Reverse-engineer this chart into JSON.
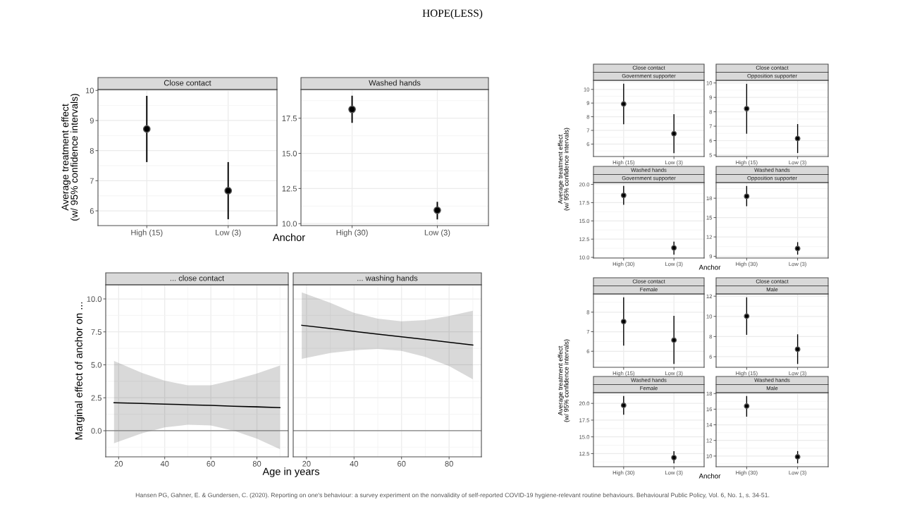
{
  "chart_data": [
    {
      "type": "other",
      "title": "HOPE(LESS)",
      "annotations": [
        "Hansen PG, Gahner, E. & Gundersen, C. (2020). Reporting on one's behaviour: a survey experiment on the nonvalidity of self-reported COVID-19 hygiene-relevant routine behaviours. Behavioural Public Policy, Vol. 6, No. 1, s. 34-51."
      ]
    },
    {
      "type": "scatter",
      "title": "Close contact",
      "xlabel": "Anchor",
      "ylabel": "Average treatment effect\n(w/ 95% confidence intervals)",
      "categories": [
        "High (15)",
        "Low (3)"
      ],
      "values": [
        8.72,
        6.67
      ],
      "errors": [
        [
          7.62,
          9.82
        ],
        [
          5.72,
          7.62
        ]
      ],
      "color": "#000000",
      "marker": "circle",
      "grid": true,
      "ylim": [
        5.51,
        10.03
      ],
      "yticks": [
        6,
        7,
        8,
        9,
        10
      ]
    },
    {
      "type": "scatter",
      "title": "Washed hands",
      "categories": [
        "High (30)",
        "Low (3)"
      ],
      "values": [
        18.13,
        10.95
      ],
      "errors": [
        [
          17.17,
          19.1
        ],
        [
          10.3,
          11.55
        ]
      ],
      "color": "#000000",
      "marker": "circle",
      "grid": true,
      "ylim": [
        9.86,
        19.54
      ],
      "yticks": [
        {
          "value": 10,
          "label": "10.0"
        },
        12.5,
        {
          "value": 15,
          "label": "15.0"
        },
        17.5
      ]
    },
    {
      "type": "line",
      "title": "... close contact",
      "xlabel": "Age in years",
      "ylabel": "Marginal effect of anchor on ...",
      "x": [
        18,
        30,
        40,
        50,
        60,
        70,
        80,
        90
      ],
      "series": [
        {
          "color": "#000000",
          "values": [
            2.12,
            2.07,
            2.02,
            1.97,
            1.92,
            1.86,
            1.81,
            1.75
          ],
          "lower": [
            -0.95,
            -0.2,
            0.25,
            0.45,
            0.4,
            0.0,
            -0.6,
            -1.4
          ],
          "upper": [
            5.3,
            4.4,
            3.8,
            3.45,
            3.45,
            3.85,
            4.35,
            4.95
          ]
        }
      ],
      "ref_lines": [
        {
          "axis": "y",
          "value": 0,
          "color": "#808080"
        }
      ],
      "grid": true,
      "xlim": [
        14.4,
        93.6
      ],
      "xticks": [
        20,
        40,
        60,
        80
      ],
      "ylim": [
        -1.98,
        11.07
      ],
      "yticks": [
        {
          "value": 0,
          "label": "0.0"
        },
        2.5,
        {
          "value": 5,
          "label": "5.0"
        },
        7.5,
        {
          "value": 10,
          "label": "10.0"
        }
      ]
    },
    {
      "type": "line",
      "title": "... washing hands",
      "x": [
        18,
        30,
        40,
        50,
        60,
        70,
        80,
        90
      ],
      "series": [
        {
          "color": "#000000",
          "values": [
            8.0,
            7.75,
            7.54,
            7.33,
            7.13,
            6.92,
            6.71,
            6.5
          ],
          "lower": [
            5.45,
            5.9,
            6.1,
            6.2,
            6.05,
            5.6,
            4.9,
            3.9
          ],
          "upper": [
            10.5,
            9.7,
            8.95,
            8.5,
            8.3,
            8.4,
            8.7,
            9.1
          ]
        }
      ],
      "ref_lines": [
        {
          "axis": "y",
          "value": 0,
          "color": "#808080"
        }
      ],
      "grid": true,
      "xlim": [
        14.4,
        93.6
      ],
      "xticks": [
        20,
        40,
        60,
        80
      ],
      "ylim": [
        -1.98,
        11.07
      ],
      "yticks": [
        {
          "value": 0,
          "label": null
        },
        {
          "value": 2.5,
          "label": null
        },
        {
          "value": 5,
          "label": null
        },
        {
          "value": 7.5,
          "label": null
        },
        {
          "value": 10,
          "label": null
        }
      ],
      "tick_labels": "x"
    },
    {
      "type": "scatter",
      "title": "Close contact",
      "subtitle": "Government supporter",
      "ylabel": "Average treatment effect\n(w/ 95% confidence intervals)",
      "categories": [
        "High (15)",
        "Low (3)"
      ],
      "values": [
        8.93,
        6.76
      ],
      "errors": [
        [
          7.45,
          10.41
        ],
        [
          5.34,
          8.19
        ]
      ],
      "color": "#000000",
      "marker": "circle",
      "grid": true,
      "ylim": [
        5.09,
        10.66
      ],
      "yticks": [
        6,
        7,
        8,
        9,
        10
      ]
    },
    {
      "type": "scatter",
      "title": "Close contact",
      "subtitle": "Opposition supporter",
      "categories": [
        "High (15)",
        "Low (3)"
      ],
      "values": [
        8.22,
        6.15
      ],
      "errors": [
        [
          6.48,
          9.94
        ],
        [
          5.14,
          7.15
        ]
      ],
      "color": "#000000",
      "marker": "circle",
      "grid": true,
      "ylim": [
        4.9,
        10.18
      ],
      "yticks": [
        5,
        6,
        7,
        8,
        9,
        10
      ]
    },
    {
      "type": "scatter",
      "title": "Washed hands",
      "subtitle": "Government supporter",
      "xlabel": "Anchor",
      "categories": [
        "High (30)",
        "Low (3)"
      ],
      "values": [
        18.5,
        11.3
      ],
      "errors": [
        [
          17.2,
          19.78
        ],
        [
          10.38,
          12.15
        ]
      ],
      "color": "#000000",
      "marker": "circle",
      "grid": true,
      "ylim": [
        9.91,
        20.25
      ],
      "yticks": [
        {
          "value": 10,
          "label": "10.0"
        },
        12.5,
        {
          "value": 15,
          "label": "15.0"
        },
        17.5,
        {
          "value": 20,
          "label": "20.0"
        }
      ]
    },
    {
      "type": "scatter",
      "title": "Washed hands",
      "subtitle": "Opposition supporter",
      "categories": [
        "High (30)",
        "Low (3)"
      ],
      "values": [
        18.3,
        10.2
      ],
      "errors": [
        [
          16.76,
          19.89
        ],
        [
          9.26,
          11.19
        ]
      ],
      "color": "#000000",
      "marker": "circle",
      "grid": true,
      "ylim": [
        8.73,
        20.42
      ],
      "yticks": [
        9,
        12,
        15,
        18
      ]
    },
    {
      "type": "scatter",
      "title": "Close contact",
      "subtitle": "Female",
      "ylabel": "Average treatment effect\n(w/ 95% confidence intervals)",
      "categories": [
        "High (15)",
        "Low (3)"
      ],
      "values": [
        7.52,
        6.57
      ],
      "errors": [
        [
          6.29,
          8.76
        ],
        [
          5.35,
          7.81
        ]
      ],
      "color": "#000000",
      "marker": "circle",
      "grid": true,
      "ylim": [
        5.18,
        8.93
      ],
      "yticks": [
        6,
        7,
        8
      ]
    },
    {
      "type": "scatter",
      "title": "Close contact",
      "subtitle": "Male",
      "categories": [
        "High (15)",
        "Low (3)"
      ],
      "values": [
        10.02,
        6.74
      ],
      "errors": [
        [
          8.17,
          11.89
        ],
        [
          5.28,
          8.22
        ]
      ],
      "color": "#000000",
      "marker": "circle",
      "grid": true,
      "ylim": [
        4.95,
        12.22
      ],
      "yticks": [
        6,
        8,
        10,
        12
      ]
    },
    {
      "type": "scatter",
      "title": "Washed hands",
      "subtitle": "Female",
      "xlabel": "Anchor",
      "categories": [
        "High (30)",
        "Low (3)"
      ],
      "values": [
        19.7,
        11.9
      ],
      "errors": [
        [
          18.3,
          21.1
        ],
        [
          11.04,
          12.85
        ]
      ],
      "color": "#000000",
      "marker": "circle",
      "grid": true,
      "ylim": [
        10.54,
        21.6
      ],
      "yticks": [
        12.5,
        {
          "value": 15,
          "label": "15.0"
        },
        17.5,
        {
          "value": 20,
          "label": "20.0"
        }
      ]
    },
    {
      "type": "scatter",
      "title": "Washed hands",
      "subtitle": "Male",
      "categories": [
        "High (30)",
        "Low (3)"
      ],
      "values": [
        16.4,
        9.9
      ],
      "errors": [
        [
          15.04,
          17.68
        ],
        [
          9.07,
          10.64
        ]
      ],
      "color": "#000000",
      "marker": "circle",
      "grid": true,
      "ylim": [
        8.64,
        18.11
      ],
      "yticks": [
        10,
        12,
        14,
        16,
        18
      ]
    }
  ]
}
